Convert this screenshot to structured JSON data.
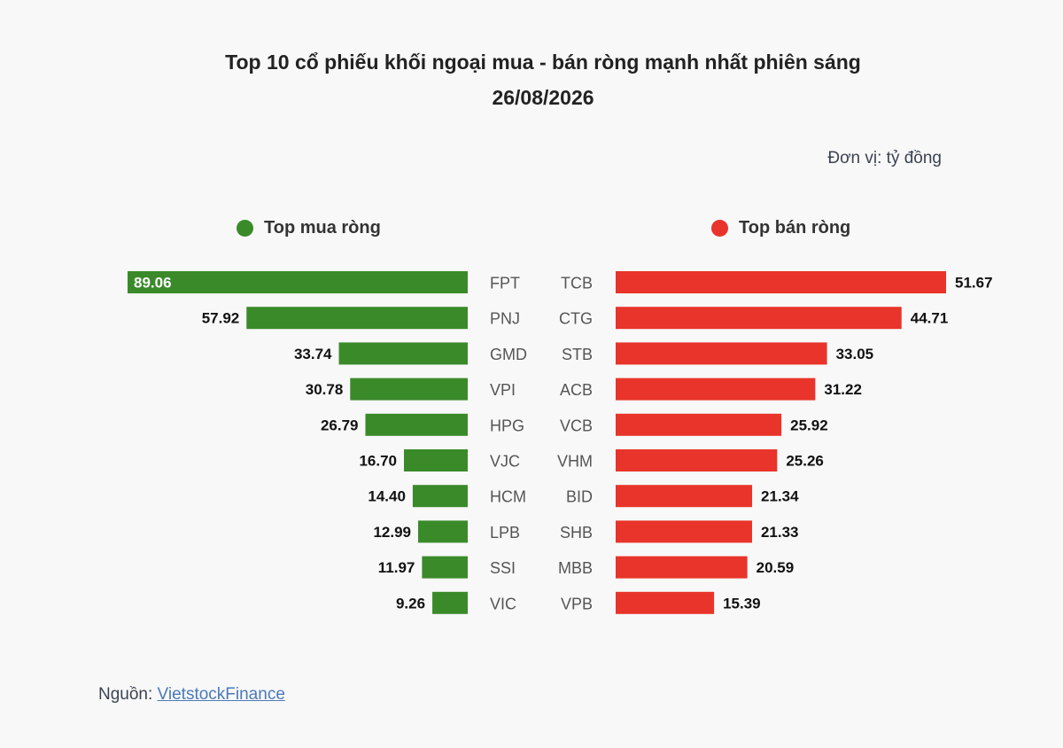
{
  "chart_data": {
    "type": "bar",
    "orientation": "horizontal-diverging",
    "title": "Top 10 cổ phiếu khối ngoại mua - bán ròng mạnh nhất phiên sáng",
    "subtitle": "26/08/2026",
    "unit": "Đơn vị: tỷ đồng",
    "series": [
      {
        "name": "Top mua ròng",
        "color": "#3a8a2a",
        "categories": [
          "FPT",
          "PNJ",
          "GMD",
          "VPI",
          "HPG",
          "VJC",
          "HCM",
          "LPB",
          "SSI",
          "VIC"
        ],
        "values": [
          89.06,
          57.92,
          33.74,
          30.78,
          26.79,
          16.7,
          14.4,
          12.99,
          11.97,
          9.26
        ],
        "labels": [
          "89.06",
          "57.92",
          "33.74",
          "30.78",
          "26.79",
          "16.70",
          "14.40",
          "12.99",
          "11.97",
          "9.26"
        ]
      },
      {
        "name": "Top bán ròng",
        "color": "#e8342a",
        "categories": [
          "TCB",
          "CTG",
          "STB",
          "ACB",
          "VCB",
          "VHM",
          "BID",
          "SHB",
          "MBB",
          "VPB"
        ],
        "values": [
          51.67,
          44.71,
          33.05,
          31.22,
          25.92,
          25.26,
          21.34,
          21.33,
          20.59,
          15.39
        ],
        "labels": [
          "51.67",
          "44.71",
          "33.05",
          "31.22",
          "25.92",
          "25.26",
          "21.34",
          "21.33",
          "20.59",
          "15.39"
        ]
      }
    ]
  },
  "source": {
    "label": "Nguồn: ",
    "link_text": "VietstockFinance"
  }
}
